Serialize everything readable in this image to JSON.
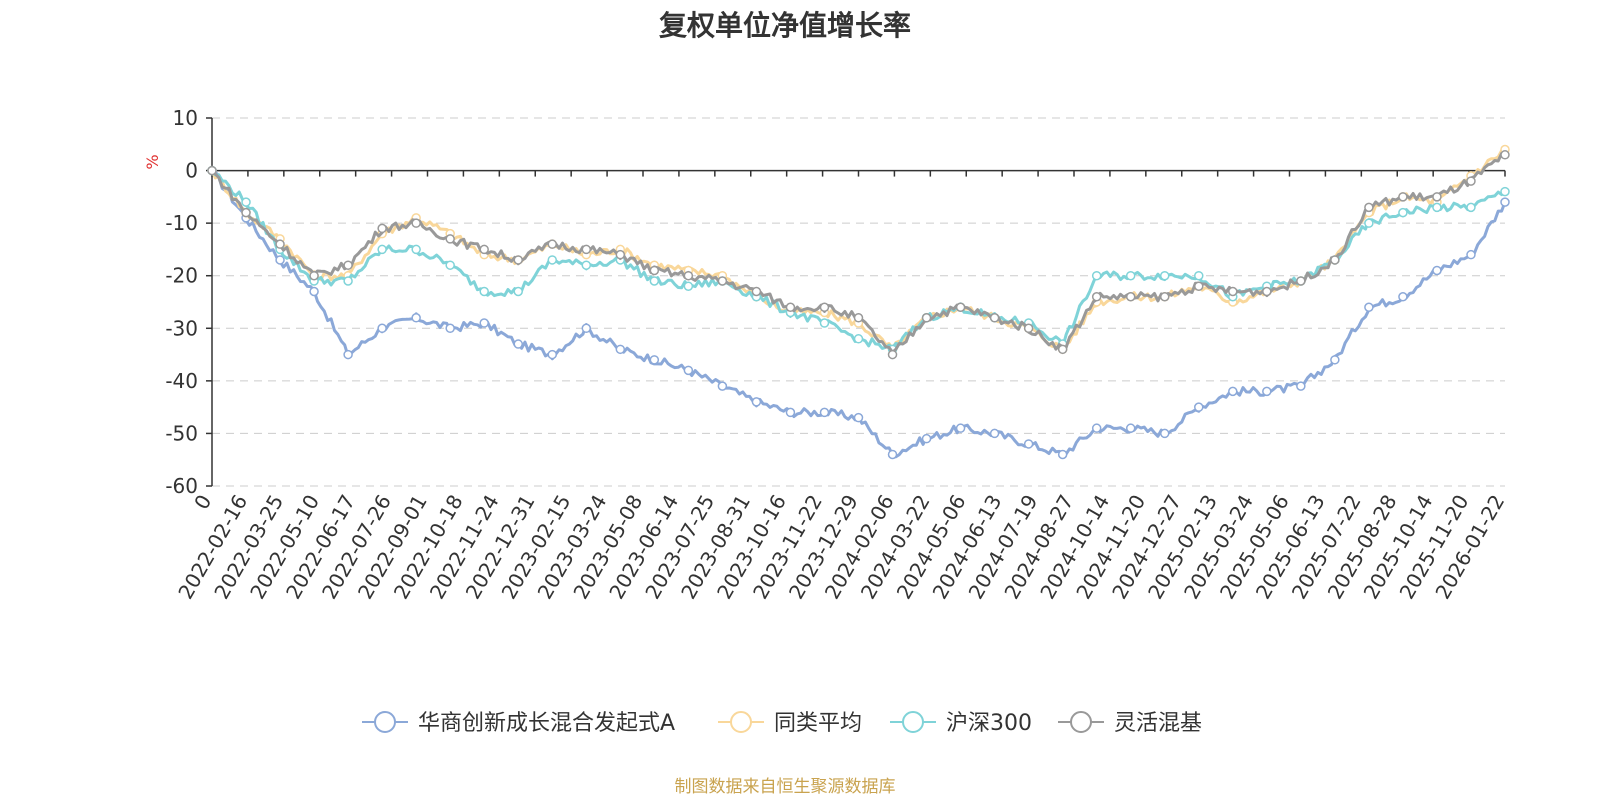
{
  "chart_data": {
    "type": "line",
    "title": "复权单位净值增长率",
    "ylabel": "%",
    "ylim": [
      -60,
      10
    ],
    "y_ticks": [
      10,
      0,
      -10,
      -20,
      -30,
      -40,
      -50,
      -60
    ],
    "x_ticks": [
      "0",
      "2022-02-16",
      "2022-03-25",
      "2022-05-10",
      "2022-06-17",
      "2022-07-26",
      "2022-09-01",
      "2022-10-18",
      "2022-11-24",
      "2022-12-31",
      "2023-02-15",
      "2023-03-24",
      "2023-05-08",
      "2023-06-14",
      "2023-07-25",
      "2023-08-31",
      "2023-10-16",
      "2023-11-22",
      "2023-12-29",
      "2024-02-06",
      "2024-03-22",
      "2024-05-06",
      "2024-06-13",
      "2024-07-19",
      "2024-08-27",
      "2024-10-14",
      "2024-11-20",
      "2024-12-27",
      "2025-02-13",
      "2025-03-24",
      "2025-05-06",
      "2025-06-13",
      "2025-07-22",
      "2025-08-28",
      "2025-10-14",
      "2025-11-20",
      "2026-01-22"
    ],
    "grid": true,
    "legend_position": "bottom",
    "series": [
      {
        "name": "华商创新成长混合发起式A",
        "color": "#8ba8d8",
        "values": [
          0,
          -9,
          -17,
          -23,
          -35,
          -30,
          -28,
          -30,
          -29,
          -33,
          -35,
          -30,
          -34,
          -36,
          -38,
          -41,
          -44,
          -46,
          -46,
          -47,
          -54,
          -51,
          -49,
          -50,
          -52,
          -54,
          -49,
          -49,
          -50,
          -45,
          -42,
          -42,
          -41,
          -36,
          -26,
          -24,
          -19,
          -16,
          -6
        ]
      },
      {
        "name": "同类平均",
        "color": "#f9d79a",
        "values": [
          0,
          -8,
          -13,
          -20,
          -20,
          -12,
          -9,
          -12,
          -16,
          -17,
          -14,
          -16,
          -15,
          -18,
          -19,
          -20,
          -24,
          -27,
          -27,
          -29,
          -34,
          -28,
          -26,
          -28,
          -30,
          -34,
          -25,
          -24,
          -24,
          -22,
          -25,
          -23,
          -21,
          -17,
          -8,
          -5,
          -6,
          -1,
          4
        ]
      },
      {
        "name": "沪深300",
        "color": "#7fd3d8",
        "values": [
          0,
          -6,
          -15,
          -21,
          -21,
          -15,
          -15,
          -18,
          -23,
          -23,
          -17,
          -18,
          -17,
          -21,
          -22,
          -21,
          -24,
          -27,
          -29,
          -32,
          -34,
          -28,
          -26,
          -28,
          -29,
          -33,
          -20,
          -20,
          -20,
          -20,
          -24,
          -22,
          -21,
          -17,
          -10,
          -8,
          -7,
          -7,
          -4
        ]
      },
      {
        "name": "灵活混基",
        "color": "#999999",
        "values": [
          0,
          -8,
          -14,
          -20,
          -18,
          -11,
          -10,
          -13,
          -15,
          -17,
          -14,
          -15,
          -16,
          -19,
          -20,
          -21,
          -23,
          -26,
          -26,
          -28,
          -35,
          -28,
          -26,
          -28,
          -30,
          -34,
          -24,
          -24,
          -24,
          -22,
          -23,
          -23,
          -21,
          -17,
          -7,
          -5,
          -5,
          -2,
          3
        ]
      }
    ]
  },
  "source_note": "制图数据来自恒生聚源数据库"
}
